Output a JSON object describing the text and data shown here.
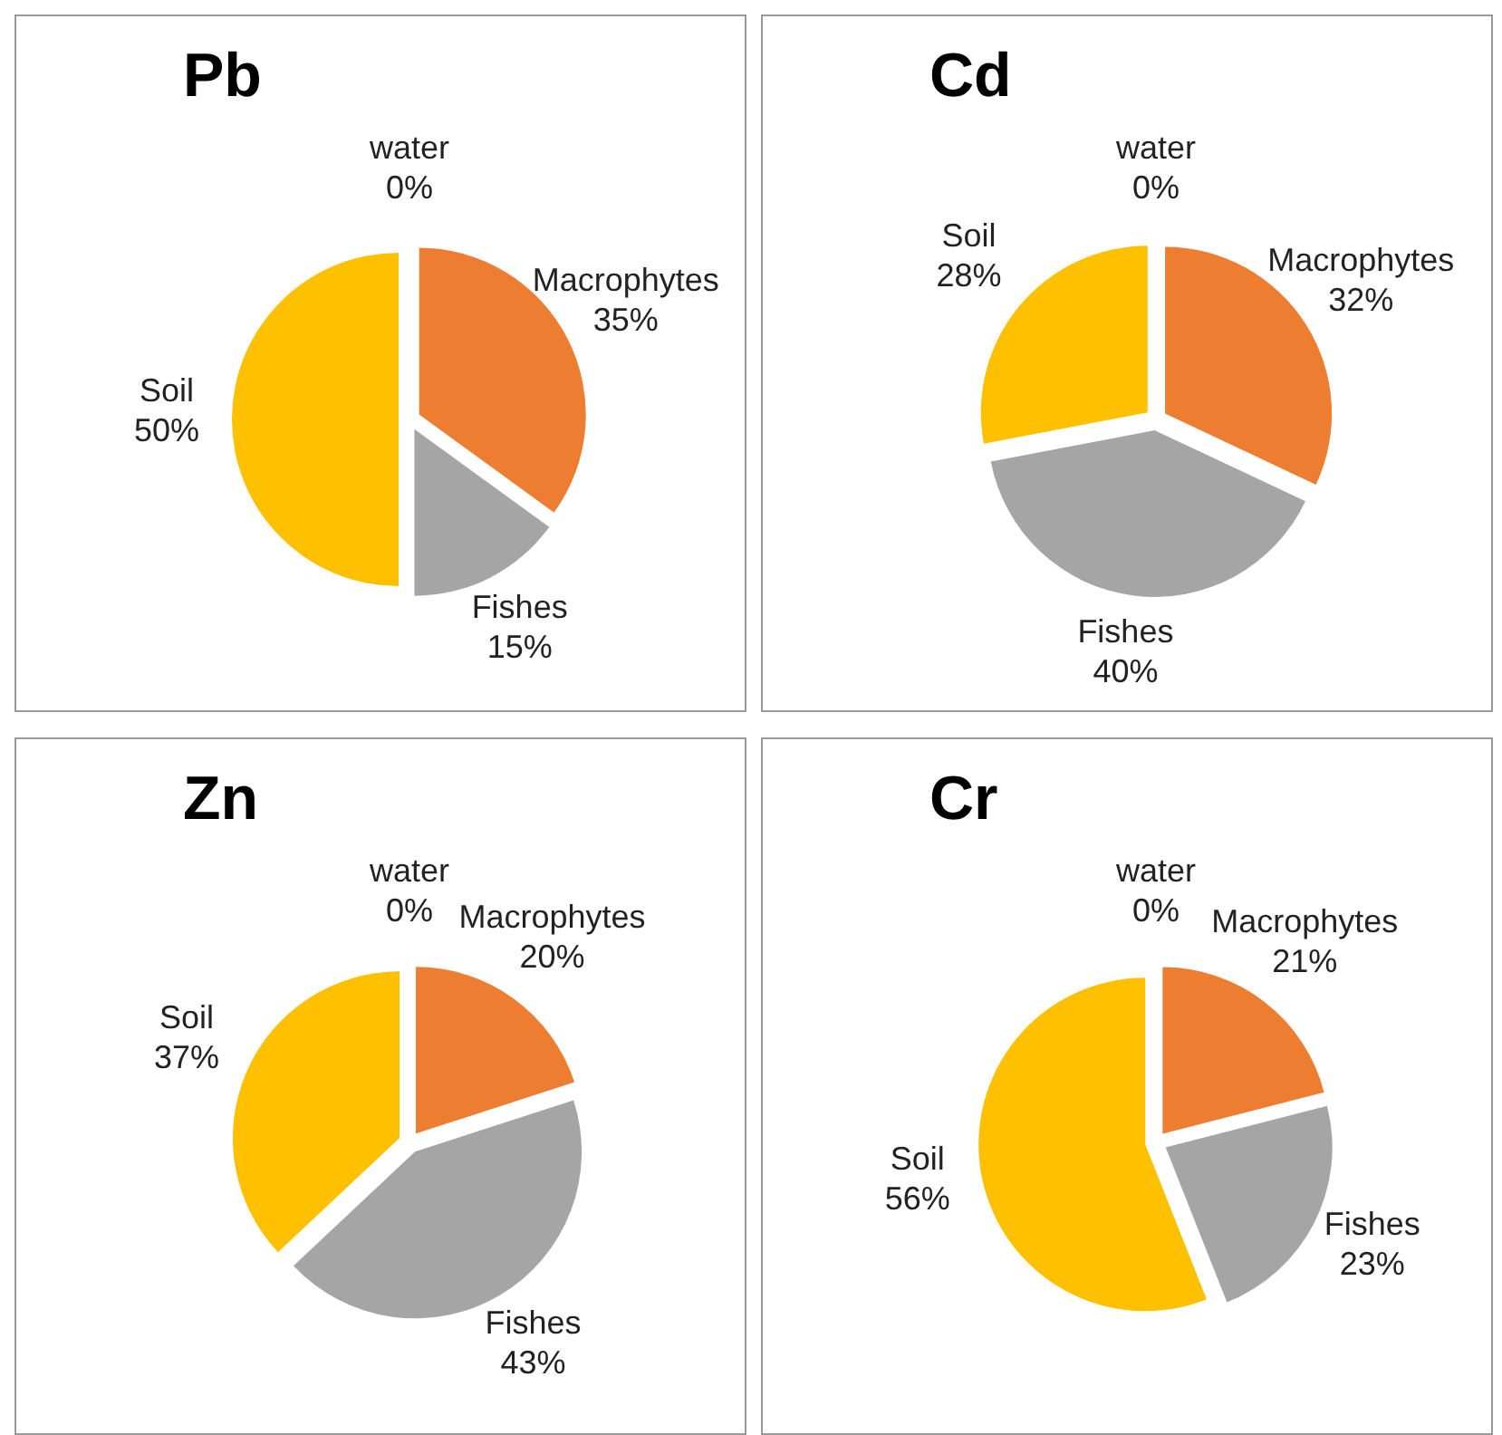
{
  "chart_data": [
    {
      "type": "pie",
      "title": "Pb",
      "categories": [
        "water",
        "Macrophytes",
        "Fishes",
        "Soil"
      ],
      "values": [
        0,
        35,
        15,
        50
      ],
      "value_labels": [
        "0%",
        "35%",
        "15%",
        "50%"
      ],
      "colors": [
        "#5b9bd5",
        "#ed7d31",
        "#a5a5a5",
        "#ffc000"
      ]
    },
    {
      "type": "pie",
      "title": "Cd",
      "categories": [
        "water",
        "Macrophytes",
        "Fishes",
        "Soil"
      ],
      "values": [
        0,
        32,
        40,
        28
      ],
      "value_labels": [
        "0%",
        "32%",
        "40%",
        "28%"
      ],
      "colors": [
        "#5b9bd5",
        "#ed7d31",
        "#a5a5a5",
        "#ffc000"
      ]
    },
    {
      "type": "pie",
      "title": "Zn",
      "categories": [
        "water",
        "Macrophytes",
        "Fishes",
        "Soil"
      ],
      "values": [
        0,
        20,
        43,
        37
      ],
      "value_labels": [
        "0%",
        "20%",
        "43%",
        "37%"
      ],
      "colors": [
        "#5b9bd5",
        "#ed7d31",
        "#a5a5a5",
        "#ffc000"
      ]
    },
    {
      "type": "pie",
      "title": "Cr",
      "categories": [
        "water",
        "Macrophytes",
        "Fishes",
        "Soil"
      ],
      "values": [
        0,
        21,
        23,
        56
      ],
      "value_labels": [
        "0%",
        "21%",
        "23%",
        "56%"
      ],
      "colors": [
        "#5b9bd5",
        "#ed7d31",
        "#a5a5a5",
        "#ffc000"
      ]
    }
  ]
}
